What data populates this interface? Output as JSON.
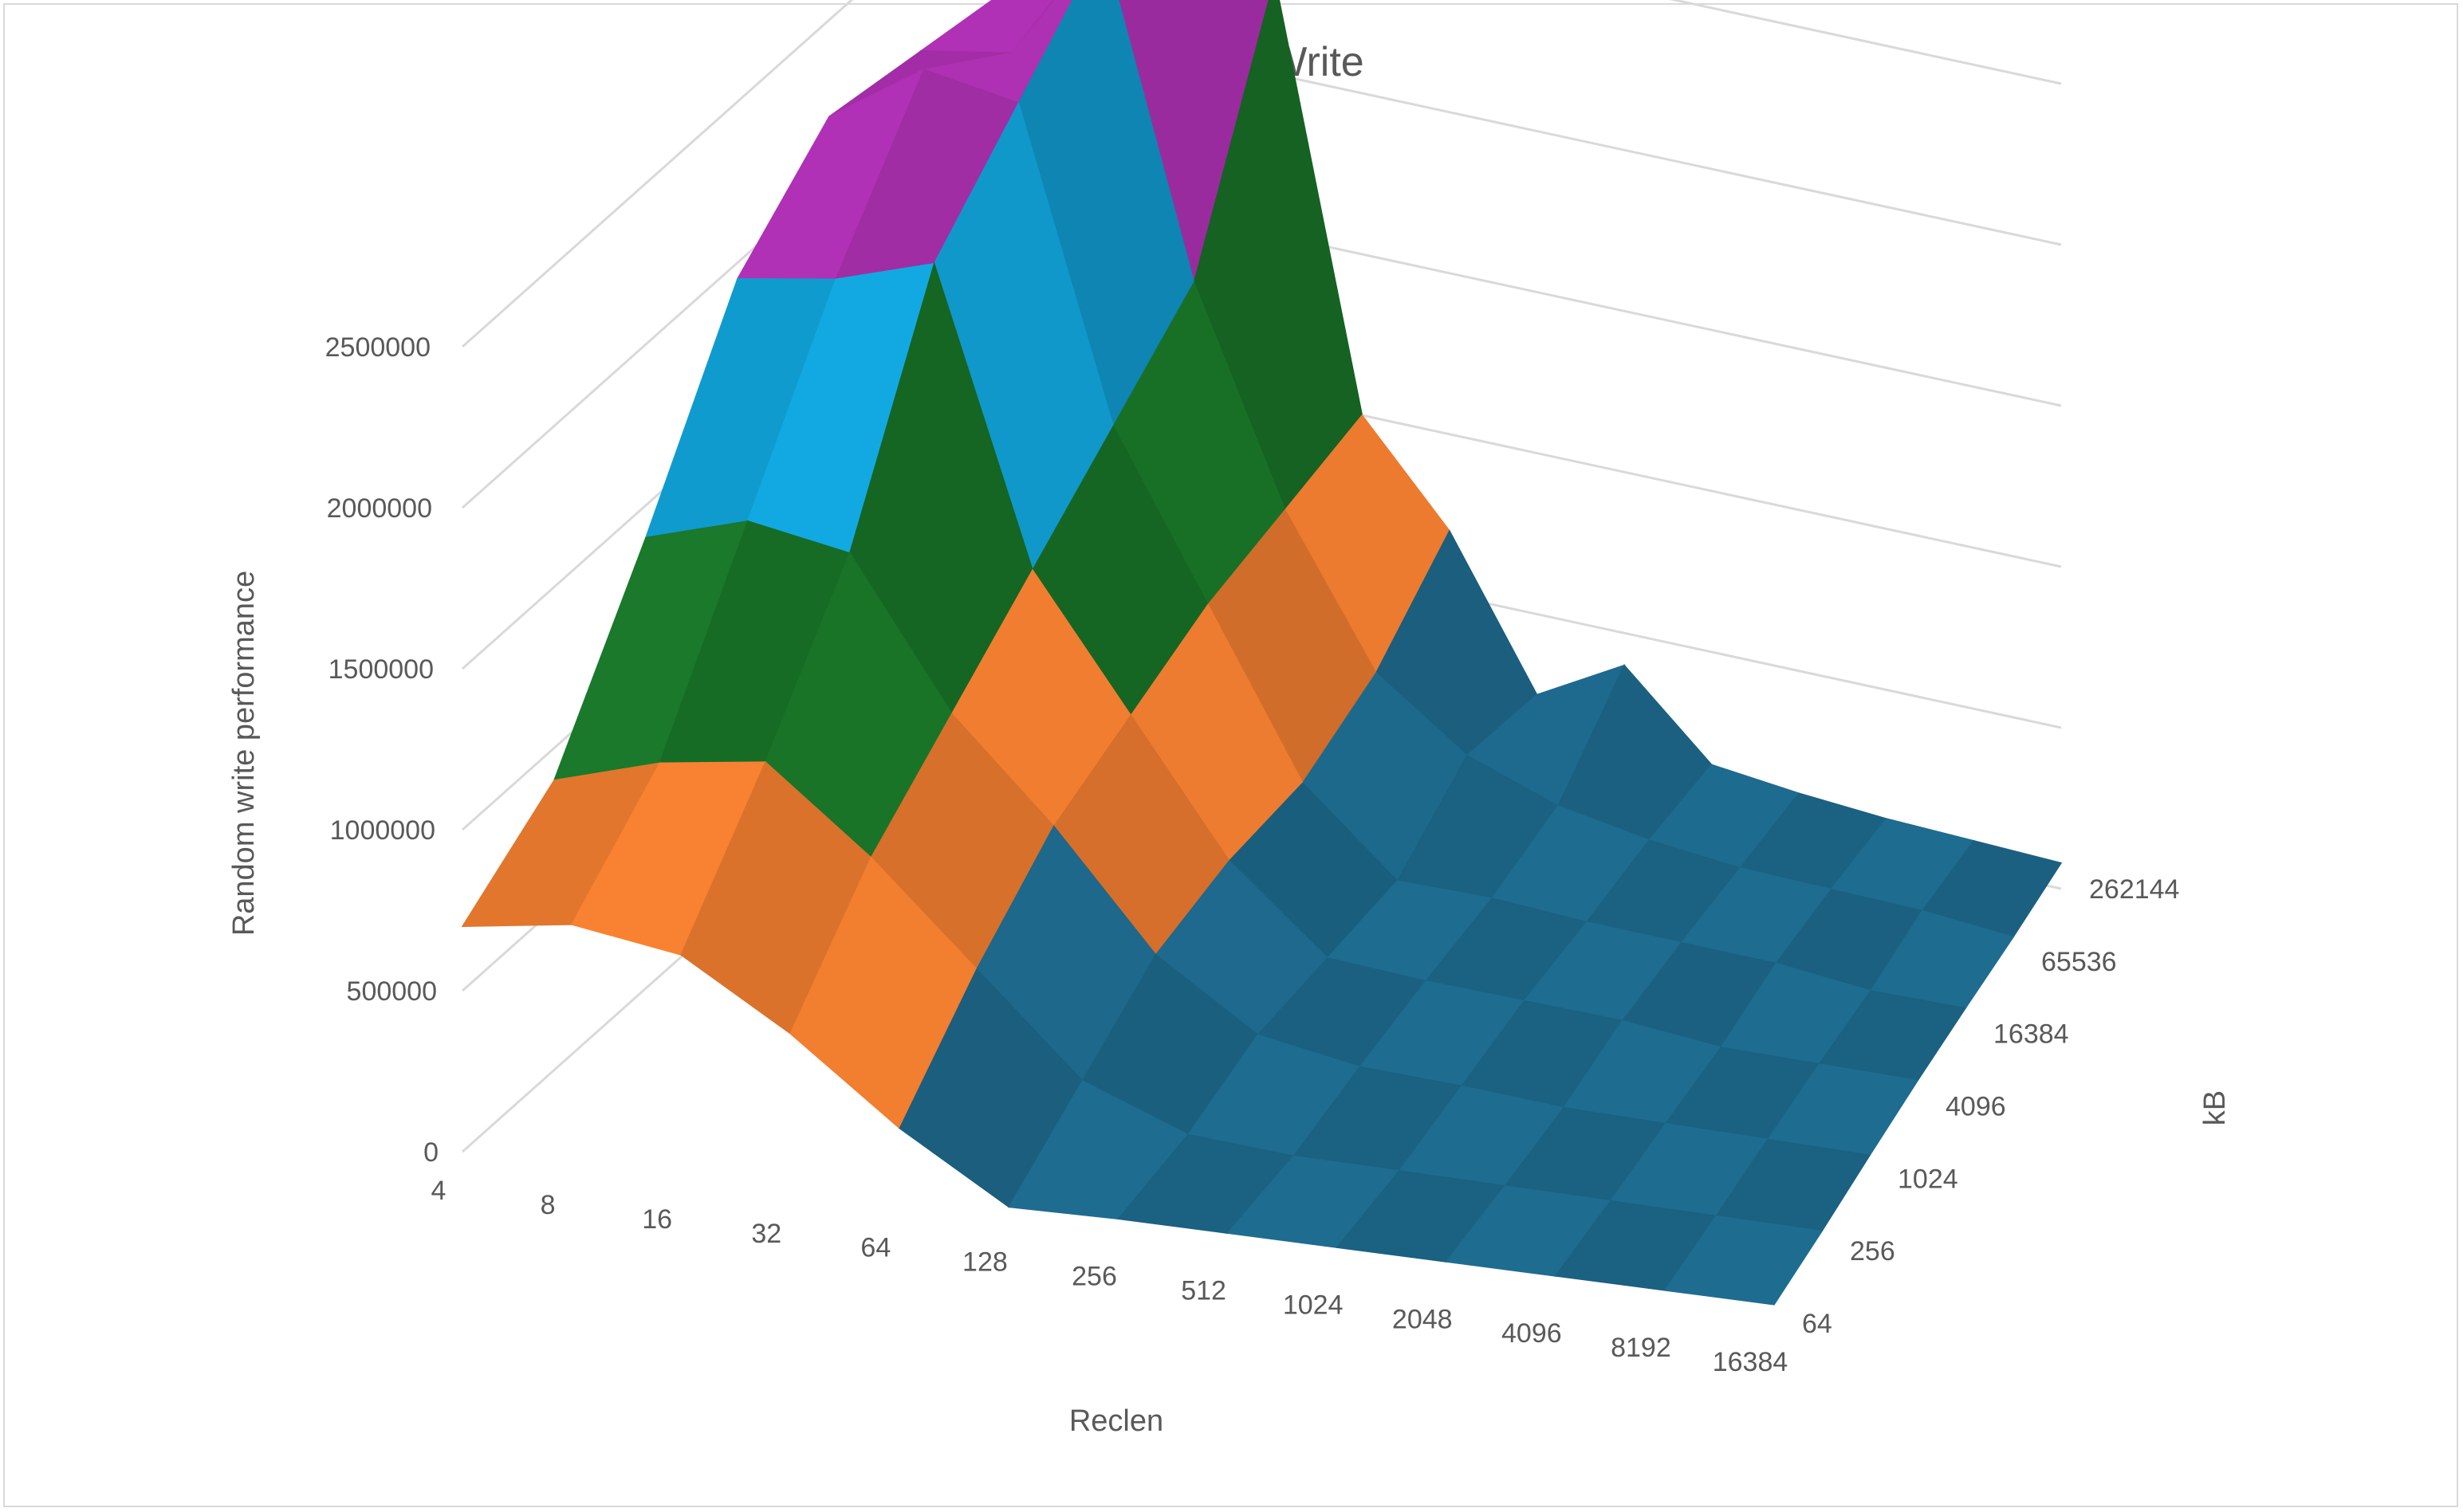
{
  "chart_data": {
    "type": "surface",
    "title": "Random Write",
    "xlabel": "Reclen",
    "ylabel": "Random write performance",
    "zlabel": "kB",
    "x_categories": [
      "4",
      "8",
      "16",
      "32",
      "64",
      "128",
      "256",
      "512",
      "1024",
      "2048",
      "4096",
      "8192",
      "16384"
    ],
    "depth_categories": [
      "64",
      "256",
      "1024",
      "4096",
      "16384",
      "65536",
      "262144"
    ],
    "ylim": [
      0,
      2500000
    ],
    "yticks": [
      "0",
      "500000",
      "1000000",
      "1500000",
      "2000000",
      "2500000"
    ],
    "band_colors": [
      "#1f6e93",
      "#ff8533",
      "#1a7a2a",
      "#12aee8",
      "#b332b8"
    ],
    "band_ranges": [
      "0-500000",
      "500000-1000000",
      "1000000-1500000",
      "1500000-2000000",
      "2000000-2500000"
    ],
    "grid": true,
    "values_by_kb": [
      {
        "kB": "64",
        "values": [
          700000,
          750000,
          700000,
          500000,
          250000,
          50000,
          null,
          null,
          null,
          null,
          null,
          null,
          null
        ]
      },
      {
        "kB": "256",
        "values": [
          900000,
          1000000,
          1050000,
          800000,
          500000,
          200000,
          80000,
          60000,
          null,
          null,
          null,
          null,
          null
        ]
      },
      {
        "kB": "1024",
        "values": [
          1400000,
          1500000,
          1450000,
          1000000,
          700000,
          350000,
          150000,
          100000,
          90000,
          null,
          null,
          null,
          null
        ]
      },
      {
        "kB": "4096",
        "values": [
          1950000,
          2000000,
          2100000,
          1200000,
          800000,
          400000,
          150000,
          130000,
          120000,
          110000,
          null,
          null,
          null
        ]
      },
      {
        "kB": "16384",
        "values": [
          2200000,
          2400000,
          2350000,
          1400000,
          900000,
          400000,
          150000,
          150000,
          130000,
          120000,
          110000,
          null,
          null
        ]
      },
      {
        "kB": "65536",
        "values": [
          2150000,
          2200000,
          2600000,
          1600000,
          950000,
          500000,
          300000,
          200000,
          150000,
          120000,
          110000,
          100000,
          null
        ]
      },
      {
        "kB": "262144",
        "values": [
          2100000,
          2300000,
          2450000,
          2300000,
          1000000,
          700000,
          250000,
          400000,
          150000,
          120000,
          100000,
          90000,
          80000
        ]
      }
    ]
  }
}
